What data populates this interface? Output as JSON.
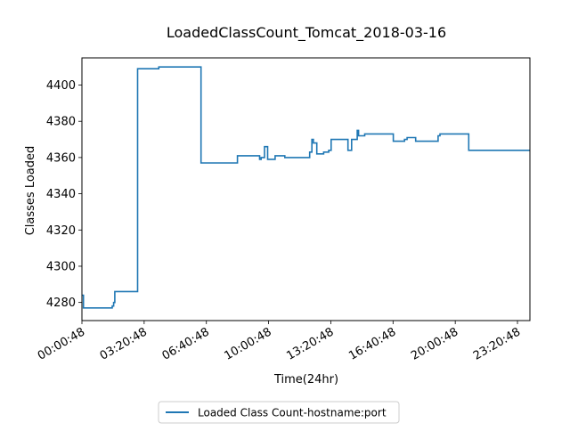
{
  "chart_data": {
    "type": "line",
    "title": "LoadedClassCount_Tomcat_2018-03-16",
    "xlabel": "Time(24hr)",
    "ylabel": "Classes Loaded",
    "x_unit": "hours",
    "xlim": [
      0,
      24
    ],
    "ylim": [
      4270,
      4415
    ],
    "y_ticks": [
      4280,
      4300,
      4320,
      4340,
      4360,
      4380,
      4400
    ],
    "x_ticks": [
      {
        "value": 0,
        "label": "00:00:48"
      },
      {
        "value": 3.333,
        "label": "03:20:48"
      },
      {
        "value": 6.667,
        "label": "06:40:48"
      },
      {
        "value": 10.0,
        "label": "10:00:48"
      },
      {
        "value": 13.333,
        "label": "13:20:48"
      },
      {
        "value": 16.667,
        "label": "16:40:48"
      },
      {
        "value": 20.0,
        "label": "20:00:48"
      },
      {
        "value": 23.333,
        "label": "23:20:48"
      }
    ],
    "grid": false,
    "legend_position": "bottom-center",
    "series": [
      {
        "name": "Loaded Class Count-hostname:port",
        "color": "#1f77b4",
        "step": true,
        "x": [
          0,
          0.08,
          1.62,
          1.7,
          1.76,
          2.92,
          2.98,
          4.1,
          4.12,
          6.38,
          8.33,
          8.9,
          9.52,
          9.6,
          9.78,
          9.95,
          10.35,
          10.87,
          11.38,
          12.2,
          12.32,
          12.4,
          12.58,
          12.95,
          13.22,
          13.35,
          13.52,
          13.62,
          14.25,
          14.45,
          14.75,
          14.82,
          15.15,
          16.68,
          17.28,
          17.42,
          17.88,
          19.0,
          19.08,
          19.18,
          20.57,
          20.72,
          21.07,
          24
        ],
        "y": [
          4284,
          4277,
          4278,
          4280,
          4286,
          4286,
          4409,
          4409,
          4410,
          4357,
          4361,
          4361,
          4359,
          4360,
          4366,
          4359,
          4361,
          4360,
          4360,
          4363,
          4370,
          4368,
          4362,
          4363,
          4364,
          4370,
          4370,
          4370,
          4364,
          4370,
          4375,
          4372,
          4373,
          4369,
          4370,
          4371,
          4369,
          4369,
          4372,
          4373,
          4373,
          4364,
          4364,
          4364
        ]
      }
    ]
  }
}
